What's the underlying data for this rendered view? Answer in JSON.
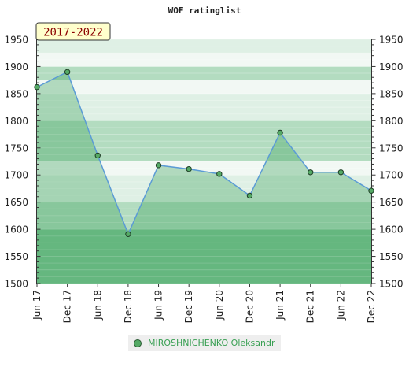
{
  "chart_data": {
    "type": "area",
    "title": "WOF ratinglist",
    "badge": "2017-2022",
    "x_labels": [
      "Jun 17",
      "Dec 17",
      "Jun 18",
      "Dec 18",
      "Jun 19",
      "Dec 19",
      "Jun 20",
      "Dec 20",
      "Jun 21",
      "Dec 21",
      "Jun 22",
      "Dec 22"
    ],
    "y_ticks": [
      1500,
      1550,
      1600,
      1650,
      1700,
      1750,
      1800,
      1850,
      1900,
      1950
    ],
    "ylim": [
      1500,
      1950
    ],
    "grid": true,
    "legend_position": "bottom-center",
    "series": [
      {
        "name": "MIROSHNICHENKO Oleksandr",
        "values": [
          1862,
          1890,
          1736,
          1591,
          1718,
          1711,
          1702,
          1662,
          1778,
          1705,
          1705,
          1671
        ],
        "line_color": "#5b9bd5",
        "marker_color": "#55aa66"
      }
    ]
  },
  "colors": {
    "band_dark": "#7dc394",
    "band_mid": "#b3dcc0",
    "band_light": "#dff0e5",
    "band_pale": "#f2f8f4",
    "badge_bg": "#ffffcc"
  }
}
